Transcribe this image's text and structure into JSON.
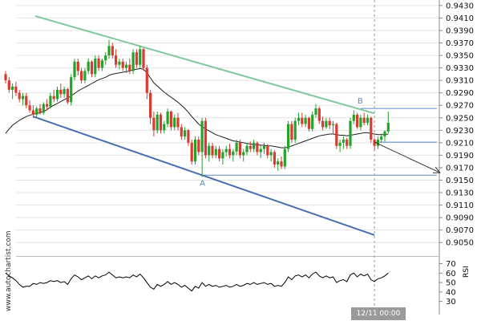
{
  "chart_data": [
    {
      "type": "candlestick",
      "panel": "price",
      "y_ticks": [
        "0.9430",
        "0.9410",
        "0.9390",
        "0.9370",
        "0.9350",
        "0.9330",
        "0.9310",
        "0.9290",
        "0.9270",
        "0.9250",
        "0.9230",
        "0.9210",
        "0.9190",
        "0.9170",
        "0.9150",
        "0.9130",
        "0.9110",
        "0.9090",
        "0.9070",
        "0.9050"
      ],
      "ylim": [
        0.904,
        0.9435
      ],
      "x_time_label": "12/11 00:00",
      "candles": [
        [
          0.932,
          0.9325,
          0.9305,
          0.931
        ],
        [
          0.931,
          0.9315,
          0.929,
          0.9295
        ],
        [
          0.9295,
          0.9305,
          0.928,
          0.93
        ],
        [
          0.93,
          0.9308,
          0.9285,
          0.929
        ],
        [
          0.929,
          0.9295,
          0.9275,
          0.928
        ],
        [
          0.928,
          0.929,
          0.927,
          0.9285
        ],
        [
          0.9285,
          0.929,
          0.9265,
          0.927
        ],
        [
          0.927,
          0.9278,
          0.9258,
          0.9262
        ],
        [
          0.9262,
          0.927,
          0.925,
          0.9255
        ],
        [
          0.9255,
          0.9268,
          0.925,
          0.9265
        ],
        [
          0.9265,
          0.9272,
          0.9255,
          0.9258
        ],
        [
          0.9258,
          0.9275,
          0.9255,
          0.9272
        ],
        [
          0.9272,
          0.928,
          0.9262,
          0.9268
        ],
        [
          0.9268,
          0.929,
          0.9265,
          0.9285
        ],
        [
          0.9285,
          0.9295,
          0.9275,
          0.928
        ],
        [
          0.928,
          0.93,
          0.9276,
          0.9295
        ],
        [
          0.9295,
          0.9305,
          0.9282,
          0.9288
        ],
        [
          0.9288,
          0.93,
          0.9282,
          0.9296
        ],
        [
          0.9296,
          0.9298,
          0.9272,
          0.9275
        ],
        [
          0.9275,
          0.932,
          0.927,
          0.9315
        ],
        [
          0.9315,
          0.9345,
          0.931,
          0.934
        ],
        [
          0.934,
          0.9345,
          0.9318,
          0.9325
        ],
        [
          0.9325,
          0.933,
          0.9305,
          0.931
        ],
        [
          0.931,
          0.933,
          0.9305,
          0.9325
        ],
        [
          0.9325,
          0.9345,
          0.932,
          0.934
        ],
        [
          0.934,
          0.9342,
          0.9315,
          0.932
        ],
        [
          0.932,
          0.935,
          0.9315,
          0.9345
        ],
        [
          0.9345,
          0.935,
          0.9325,
          0.933
        ],
        [
          0.933,
          0.9345,
          0.9325,
          0.9342
        ],
        [
          0.9342,
          0.9355,
          0.9335,
          0.935
        ],
        [
          0.935,
          0.9375,
          0.9345,
          0.9365
        ],
        [
          0.9365,
          0.937,
          0.9345,
          0.935
        ],
        [
          0.935,
          0.936,
          0.933,
          0.9335
        ],
        [
          0.9335,
          0.9345,
          0.9328,
          0.934
        ],
        [
          0.934,
          0.9345,
          0.9325,
          0.933
        ],
        [
          0.933,
          0.934,
          0.9322,
          0.9335
        ],
        [
          0.9335,
          0.9345,
          0.932,
          0.9325
        ],
        [
          0.9325,
          0.936,
          0.932,
          0.9355
        ],
        [
          0.9355,
          0.936,
          0.933,
          0.9335
        ],
        [
          0.9335,
          0.9365,
          0.933,
          0.936
        ],
        [
          0.936,
          0.9362,
          0.9325,
          0.933
        ],
        [
          0.933,
          0.9335,
          0.928,
          0.929
        ],
        [
          0.929,
          0.9295,
          0.924,
          0.925
        ],
        [
          0.925,
          0.926,
          0.922,
          0.923
        ],
        [
          0.923,
          0.926,
          0.9225,
          0.9255
        ],
        [
          0.9255,
          0.9258,
          0.9225,
          0.923
        ],
        [
          0.923,
          0.9245,
          0.9225,
          0.924
        ],
        [
          0.924,
          0.9265,
          0.9235,
          0.926
        ],
        [
          0.926,
          0.9262,
          0.923,
          0.9235
        ],
        [
          0.9235,
          0.9255,
          0.923,
          0.925
        ],
        [
          0.925,
          0.9258,
          0.923,
          0.9235
        ],
        [
          0.9235,
          0.924,
          0.9215,
          0.922
        ],
        [
          0.922,
          0.9235,
          0.9215,
          0.923
        ],
        [
          0.923,
          0.9232,
          0.9205,
          0.921
        ],
        [
          0.921,
          0.9215,
          0.9175,
          0.918
        ],
        [
          0.918,
          0.922,
          0.9175,
          0.9215
        ],
        [
          0.9215,
          0.922,
          0.919,
          0.9195
        ],
        [
          0.9195,
          0.925,
          0.9155,
          0.9245
        ],
        [
          0.9245,
          0.925,
          0.9185,
          0.919
        ],
        [
          0.919,
          0.921,
          0.918,
          0.9205
        ],
        [
          0.9205,
          0.921,
          0.9185,
          0.919
        ],
        [
          0.919,
          0.9205,
          0.9185,
          0.92
        ],
        [
          0.92,
          0.9205,
          0.918,
          0.9185
        ],
        [
          0.9185,
          0.92,
          0.9175,
          0.9195
        ],
        [
          0.9195,
          0.9205,
          0.9188,
          0.92
        ],
        [
          0.92,
          0.9208,
          0.9185,
          0.919
        ],
        [
          0.919,
          0.92,
          0.918,
          0.9196
        ],
        [
          0.9196,
          0.9215,
          0.919,
          0.921
        ],
        [
          0.921,
          0.9215,
          0.9185,
          0.919
        ],
        [
          0.919,
          0.92,
          0.918,
          0.9195
        ],
        [
          0.9195,
          0.921,
          0.919,
          0.9205
        ],
        [
          0.9205,
          0.9212,
          0.9195,
          0.92
        ],
        [
          0.92,
          0.9215,
          0.9195,
          0.921
        ],
        [
          0.921,
          0.9212,
          0.919,
          0.9195
        ],
        [
          0.9195,
          0.9205,
          0.9185,
          0.92
        ],
        [
          0.92,
          0.921,
          0.9192,
          0.9205
        ],
        [
          0.9205,
          0.9208,
          0.9185,
          0.919
        ],
        [
          0.919,
          0.92,
          0.918,
          0.9195
        ],
        [
          0.9195,
          0.9198,
          0.917,
          0.9175
        ],
        [
          0.9175,
          0.9185,
          0.9165,
          0.918
        ],
        [
          0.918,
          0.9188,
          0.9168,
          0.9172
        ],
        [
          0.9172,
          0.9205,
          0.9168,
          0.92
        ],
        [
          0.92,
          0.9245,
          0.9195,
          0.924
        ],
        [
          0.924,
          0.9245,
          0.921,
          0.9215
        ],
        [
          0.9215,
          0.925,
          0.921,
          0.9245
        ],
        [
          0.9245,
          0.9258,
          0.9238,
          0.925
        ],
        [
          0.925,
          0.9258,
          0.9235,
          0.924
        ],
        [
          0.924,
          0.9255,
          0.9235,
          0.925
        ],
        [
          0.925,
          0.9252,
          0.9228,
          0.9232
        ],
        [
          0.9232,
          0.926,
          0.9228,
          0.9255
        ],
        [
          0.9255,
          0.9272,
          0.925,
          0.9265
        ],
        [
          0.9265,
          0.9268,
          0.924,
          0.9245
        ],
        [
          0.9245,
          0.9252,
          0.923,
          0.9235
        ],
        [
          0.9235,
          0.925,
          0.9232,
          0.9245
        ],
        [
          0.9245,
          0.925,
          0.9232,
          0.9238
        ],
        [
          0.9238,
          0.9245,
          0.9225,
          0.924
        ],
        [
          0.924,
          0.9242,
          0.92,
          0.9205
        ],
        [
          0.9205,
          0.9215,
          0.9195,
          0.921
        ],
        [
          0.921,
          0.922,
          0.92,
          0.9215
        ],
        [
          0.9215,
          0.9218,
          0.92,
          0.9205
        ],
        [
          0.9205,
          0.925,
          0.92,
          0.9245
        ],
        [
          0.9245,
          0.9262,
          0.924,
          0.9255
        ],
        [
          0.9255,
          0.9258,
          0.9232,
          0.9235
        ],
        [
          0.9235,
          0.9255,
          0.923,
          0.925
        ],
        [
          0.925,
          0.9258,
          0.9238,
          0.9242
        ],
        [
          0.9242,
          0.9255,
          0.9238,
          0.925
        ],
        [
          0.925,
          0.9252,
          0.921,
          0.9215
        ],
        [
          0.9215,
          0.9218,
          0.9198,
          0.9205
        ],
        [
          0.9205,
          0.922,
          0.92,
          0.9215
        ],
        [
          0.9215,
          0.9225,
          0.921,
          0.922
        ],
        [
          0.922,
          0.923,
          0.9212,
          0.9228
        ],
        [
          0.9228,
          0.926,
          0.9225,
          0.9242
        ]
      ],
      "moving_average": [
        0.9225,
        0.9232,
        0.9238,
        0.9242,
        0.9246,
        0.9249,
        0.9252,
        0.9254,
        0.9256,
        0.9257,
        0.9258,
        0.926,
        0.9263,
        0.9267,
        0.927,
        0.9273,
        0.9276,
        0.9279,
        0.9282,
        0.9285,
        0.9289,
        0.9293,
        0.9296,
        0.9299,
        0.9302,
        0.9305,
        0.9308,
        0.9311,
        0.9313,
        0.9315,
        0.9318,
        0.932,
        0.9321,
        0.9322,
        0.9323,
        0.9324,
        0.9325,
        0.9327,
        0.9328,
        0.9329,
        0.9328,
        0.9322,
        0.9314,
        0.9306,
        0.9301,
        0.9296,
        0.9291,
        0.9287,
        0.9283,
        0.9279,
        0.9275,
        0.927,
        0.9265,
        0.9259,
        0.9252,
        0.9246,
        0.924,
        0.9236,
        0.9232,
        0.9229,
        0.9226,
        0.9223,
        0.9221,
        0.9219,
        0.9217,
        0.9215,
        0.9213,
        0.9212,
        0.9211,
        0.921,
        0.9209,
        0.9208,
        0.9207,
        0.9207,
        0.9206,
        0.9206,
        0.9205,
        0.9205,
        0.9204,
        0.9203,
        0.9202,
        0.9202,
        0.9203,
        0.9205,
        0.9207,
        0.9209,
        0.9211,
        0.9213,
        0.9215,
        0.9217,
        0.9219,
        0.9221,
        0.9222,
        0.9223,
        0.9224,
        0.9224,
        0.9223,
        0.9222,
        0.9222,
        0.9221,
        0.9222,
        0.9223,
        0.9224,
        0.9225,
        0.9226,
        0.9226,
        0.9225,
        0.9224,
        0.9223,
        0.9223,
        0.9223,
        0.9224
      ],
      "channel": {
        "upper_line": {
          "from": [
            0,
            0.9413
          ],
          "to": [
            107,
            0.9257
          ]
        },
        "lower_line": {
          "from": [
            8,
            0.9252
          ],
          "to": [
            107,
            0.9062
          ]
        }
      },
      "levels": [
        0.9265,
        0.9211,
        0.9158
      ],
      "point_a": {
        "label": "A",
        "candle": 57,
        "price": 0.9155
      },
      "point_b": {
        "label": "B",
        "candle": 103,
        "price": 0.9268
      },
      "projection": {
        "from": [
          107,
          0.9211
        ],
        "to": [
          126,
          0.9162
        ]
      }
    },
    {
      "type": "line",
      "panel": "rsi",
      "ylabel": "RSI",
      "y_ticks": [
        "70",
        "60",
        "50",
        "40",
        "30"
      ],
      "ylim": [
        22,
        73
      ],
      "values": [
        60,
        57,
        55,
        52,
        48,
        45,
        46,
        46,
        49,
        48,
        50,
        49,
        50,
        52,
        51,
        52,
        50,
        51,
        48,
        54,
        58,
        56,
        53,
        55,
        57,
        54,
        57,
        55,
        57,
        58,
        61,
        58,
        55,
        56,
        55,
        56,
        55,
        58,
        56,
        59,
        55,
        50,
        45,
        43,
        48,
        46,
        48,
        51,
        48,
        50,
        48,
        45,
        47,
        44,
        41,
        46,
        44,
        50,
        46,
        48,
        46,
        47,
        45,
        46,
        47,
        45,
        46,
        48,
        46,
        47,
        49,
        48,
        50,
        48,
        49,
        50,
        48,
        49,
        46,
        47,
        46,
        50,
        56,
        53,
        57,
        58,
        56,
        58,
        55,
        59,
        61,
        57,
        55,
        57,
        55,
        56,
        50,
        52,
        53,
        51,
        58,
        60,
        56,
        59,
        57,
        59,
        53,
        51,
        54,
        55,
        57,
        60
      ]
    }
  ],
  "watermark_text": "www.autochartist.com",
  "colors": {
    "bull_candle": "#22a32a",
    "bear_candle": "#d93a32",
    "upper_trendline": "#82c79e",
    "lower_trendline": "#4a6fae",
    "level_line": "#5b89c7",
    "ma_line": "#1f1f1f",
    "projection_arrow": "#333333",
    "time_marker": "#9a9a9a"
  }
}
